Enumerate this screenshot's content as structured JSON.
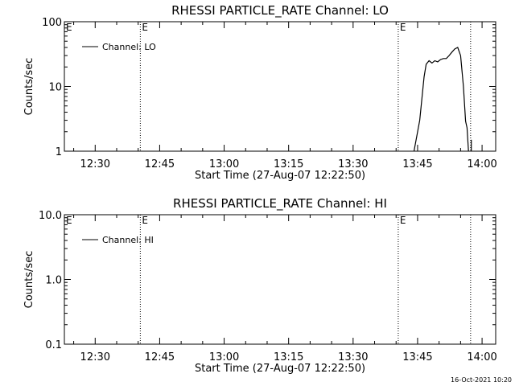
{
  "timestamp": "16-Oct-2021 10:20",
  "chart_data": [
    {
      "type": "line",
      "title": "RHESSI PARTICLE_RATE Channel: LO",
      "xlabel": "Start Time (27-Aug-07 12:22:50)",
      "ylabel": "Counts/sec",
      "yscale": "log",
      "ylim": [
        1,
        100
      ],
      "xlim": [
        "12:22:50",
        "14:03:10"
      ],
      "x_ticks": [
        "12:30",
        "12:45",
        "13:00",
        "13:15",
        "13:30",
        "13:45",
        "14:00"
      ],
      "y_ticks": [
        "1",
        "10",
        "100"
      ],
      "legend": {
        "label": "Channel: LO",
        "position": "top-left"
      },
      "markers": [
        {
          "time": "12:40:30",
          "label": "E"
        },
        {
          "time": "13:40:30",
          "label": "E"
        },
        {
          "time": "13:57:20",
          "label": ""
        }
      ],
      "series": [
        {
          "name": "Channel: LO",
          "points": [
            [
              "13:44:10",
              1
            ],
            [
              "13:45:30",
              3
            ],
            [
              "13:46:30",
              14
            ],
            [
              "13:47:00",
              22
            ],
            [
              "13:47:40",
              25
            ],
            [
              "13:48:20",
              23
            ],
            [
              "13:49:00",
              25
            ],
            [
              "13:49:40",
              24
            ],
            [
              "13:50:20",
              26
            ],
            [
              "13:51:00",
              27
            ],
            [
              "13:51:40",
              27
            ],
            [
              "13:52:20",
              30
            ],
            [
              "13:53:00",
              34
            ],
            [
              "13:53:40",
              38
            ],
            [
              "13:54:20",
              40
            ],
            [
              "13:55:00",
              30
            ],
            [
              "13:55:40",
              10
            ],
            [
              "13:56:10",
              2.9
            ],
            [
              "13:56:30",
              2.3
            ],
            [
              "13:56:50",
              1
            ]
          ]
        },
        {
          "name": "",
          "points": [
            [
              "13:57:30",
              1
            ],
            [
              "13:57:30",
              1.5
            ]
          ]
        }
      ]
    },
    {
      "type": "line",
      "title": "RHESSI PARTICLE_RATE Channel: HI",
      "xlabel": "Start Time (27-Aug-07 12:22:50)",
      "ylabel": "Counts/sec",
      "yscale": "log",
      "ylim": [
        0.1,
        10
      ],
      "xlim": [
        "12:22:50",
        "14:03:10"
      ],
      "x_ticks": [
        "12:30",
        "12:45",
        "13:00",
        "13:15",
        "13:30",
        "13:45",
        "14:00"
      ],
      "y_ticks": [
        "0.1",
        "1.0",
        "10.0"
      ],
      "legend": {
        "label": "Channel: HI",
        "position": "top-left"
      },
      "markers": [
        {
          "time": "12:40:30",
          "label": "E"
        },
        {
          "time": "13:40:30",
          "label": "E"
        },
        {
          "time": "13:57:20",
          "label": ""
        }
      ],
      "series": [
        {
          "name": "Channel: HI",
          "points": []
        }
      ]
    }
  ]
}
